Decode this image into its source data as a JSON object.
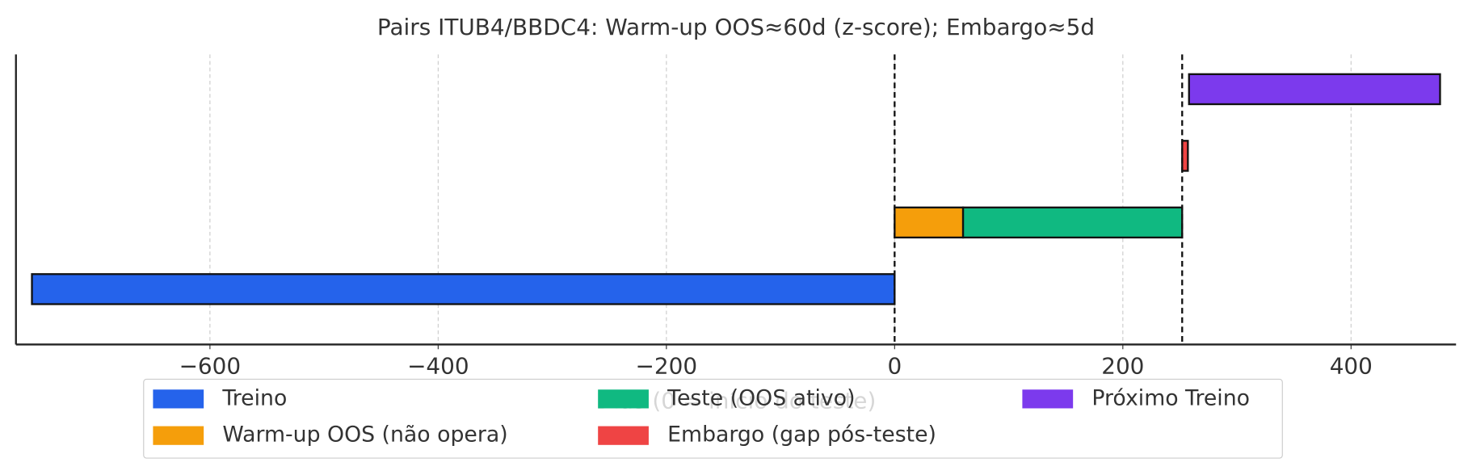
{
  "chart_data": {
    "type": "gantt",
    "title": "Pairs ITUB4/BBDC4: Warm-up OOS≈60d (z-score); Embargo≈5d",
    "xlabel": "Dias (0 = início do teste)",
    "series": [
      {
        "name": "Treino",
        "color": "#2563eb",
        "row": 0,
        "start": -756,
        "end": 0
      },
      {
        "name": "Warm-up OOS (não opera)",
        "color": "#f59e0b",
        "row": 1,
        "start": 0,
        "end": 60
      },
      {
        "name": "Teste (OOS ativo)",
        "color": "#10b981",
        "row": 1,
        "start": 60,
        "end": 252
      },
      {
        "name": "Embargo (gap pós-teste)",
        "color": "#ef4444",
        "row": 2,
        "start": 252,
        "end": 257
      },
      {
        "name": "Próximo Treino",
        "color": "#7c3aed",
        "row": 3,
        "start": 258,
        "end": 478
      }
    ],
    "vlines": [
      0,
      252
    ],
    "xlim": [
      -770,
      492
    ],
    "xticks": [
      {
        "value": -600,
        "label": "−600"
      },
      {
        "value": -400,
        "label": "−400"
      },
      {
        "value": -200,
        "label": "−200"
      },
      0,
      200,
      400
    ],
    "grid": true
  }
}
